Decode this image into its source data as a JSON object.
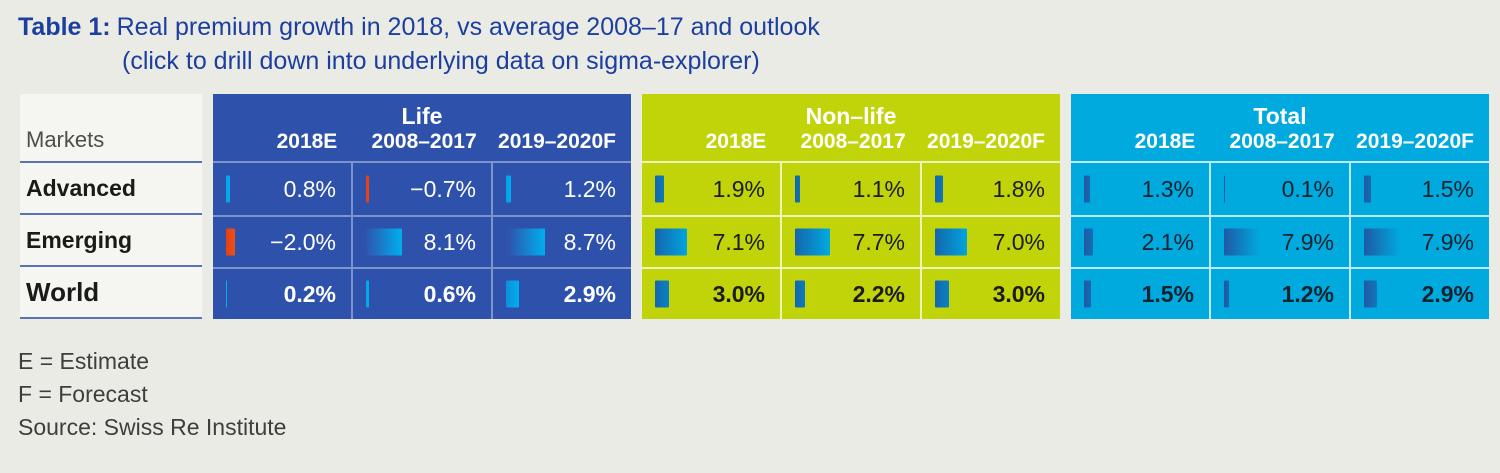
{
  "title": {
    "label": "Table 1:",
    "text": "Real premium growth in 2018, vs average 2008–17 and outlook",
    "subtitle": "(click to drill down into underlying data on sigma-explorer)"
  },
  "markets_label": "Markets",
  "row_labels": [
    "Advanced",
    "Emerging",
    "World"
  ],
  "sections": [
    {
      "name": "Life",
      "columns": [
        "2018E",
        "2008–2017",
        "2019–2020F"
      ],
      "rows": [
        {
          "cells": [
            {
              "v": 0.8,
              "d": "0.8%"
            },
            {
              "v": -0.7,
              "d": "−0.7%"
            },
            {
              "v": 1.2,
              "d": "1.2%"
            }
          ]
        },
        {
          "cells": [
            {
              "v": -2.0,
              "d": "−2.0%"
            },
            {
              "v": 8.1,
              "d": "8.1%"
            },
            {
              "v": 8.7,
              "d": "8.7%"
            }
          ]
        },
        {
          "cells": [
            {
              "v": 0.2,
              "d": "0.2%"
            },
            {
              "v": 0.6,
              "d": "0.6%"
            },
            {
              "v": 2.9,
              "d": "2.9%"
            }
          ]
        }
      ]
    },
    {
      "name": "Non–life",
      "columns": [
        "2018E",
        "2008–2017",
        "2019–2020F"
      ],
      "rows": [
        {
          "cells": [
            {
              "v": 1.9,
              "d": "1.9%"
            },
            {
              "v": 1.1,
              "d": "1.1%"
            },
            {
              "v": 1.8,
              "d": "1.8%"
            }
          ]
        },
        {
          "cells": [
            {
              "v": 7.1,
              "d": "7.1%"
            },
            {
              "v": 7.7,
              "d": "7.7%"
            },
            {
              "v": 7.0,
              "d": "7.0%"
            }
          ]
        },
        {
          "cells": [
            {
              "v": 3.0,
              "d": "3.0%"
            },
            {
              "v": 2.2,
              "d": "2.2%"
            },
            {
              "v": 3.0,
              "d": "3.0%"
            }
          ]
        }
      ]
    },
    {
      "name": "Total",
      "columns": [
        "2018E",
        "2008–2017",
        "2019–2020F"
      ],
      "rows": [
        {
          "cells": [
            {
              "v": 1.3,
              "d": "1.3%"
            },
            {
              "v": 0.1,
              "d": "0.1%"
            },
            {
              "v": 1.5,
              "d": "1.5%"
            }
          ]
        },
        {
          "cells": [
            {
              "v": 2.1,
              "d": "2.1%"
            },
            {
              "v": 7.9,
              "d": "7.9%"
            },
            {
              "v": 7.9,
              "d": "7.9%"
            }
          ]
        },
        {
          "cells": [
            {
              "v": 1.5,
              "d": "1.5%"
            },
            {
              "v": 1.2,
              "d": "1.2%"
            },
            {
              "v": 2.9,
              "d": "2.9%"
            }
          ]
        }
      ]
    }
  ],
  "footnotes": [
    "E = Estimate",
    "F = Forecast",
    "Source: Swiss Re Institute"
  ],
  "colors": {
    "life_blue": "#2E52AB",
    "nonlife_green": "#C1D40A",
    "total_cyan": "#00A9DE",
    "bar_positive_cyan": "#00AEEF",
    "bar_negative_orange": "#EA4E1B",
    "title_blue": "#1C3F9F"
  },
  "chart_data": {
    "type": "table",
    "title": "Real premium growth in 2018, vs average 2008–17 and outlook",
    "subtitle": "(click to drill down into underlying data on sigma-explorer)",
    "row_categories": [
      "Advanced",
      "Emerging",
      "World"
    ],
    "column_groups": [
      "Life",
      "Non–life",
      "Total"
    ],
    "columns_per_group": [
      "2018E",
      "2008–2017",
      "2019–2020F"
    ],
    "values_percent": {
      "Life": {
        "Advanced": [
          0.8,
          -0.7,
          1.2
        ],
        "Emerging": [
          -2.0,
          8.1,
          8.7
        ],
        "World": [
          0.2,
          0.6,
          2.9
        ]
      },
      "Non-life": {
        "Advanced": [
          1.9,
          1.1,
          1.8
        ],
        "Emerging": [
          7.1,
          7.7,
          7.0
        ],
        "World": [
          3.0,
          2.2,
          3.0
        ]
      },
      "Total": {
        "Advanced": [
          1.3,
          0.1,
          1.5
        ],
        "Emerging": [
          2.1,
          7.9,
          7.9
        ],
        "World": [
          1.5,
          1.2,
          2.9
        ]
      }
    },
    "bar_encoding": "in-cell bar width proportional to absolute value; blue gradient = positive, orange = negative",
    "source": "Swiss Re Institute"
  }
}
